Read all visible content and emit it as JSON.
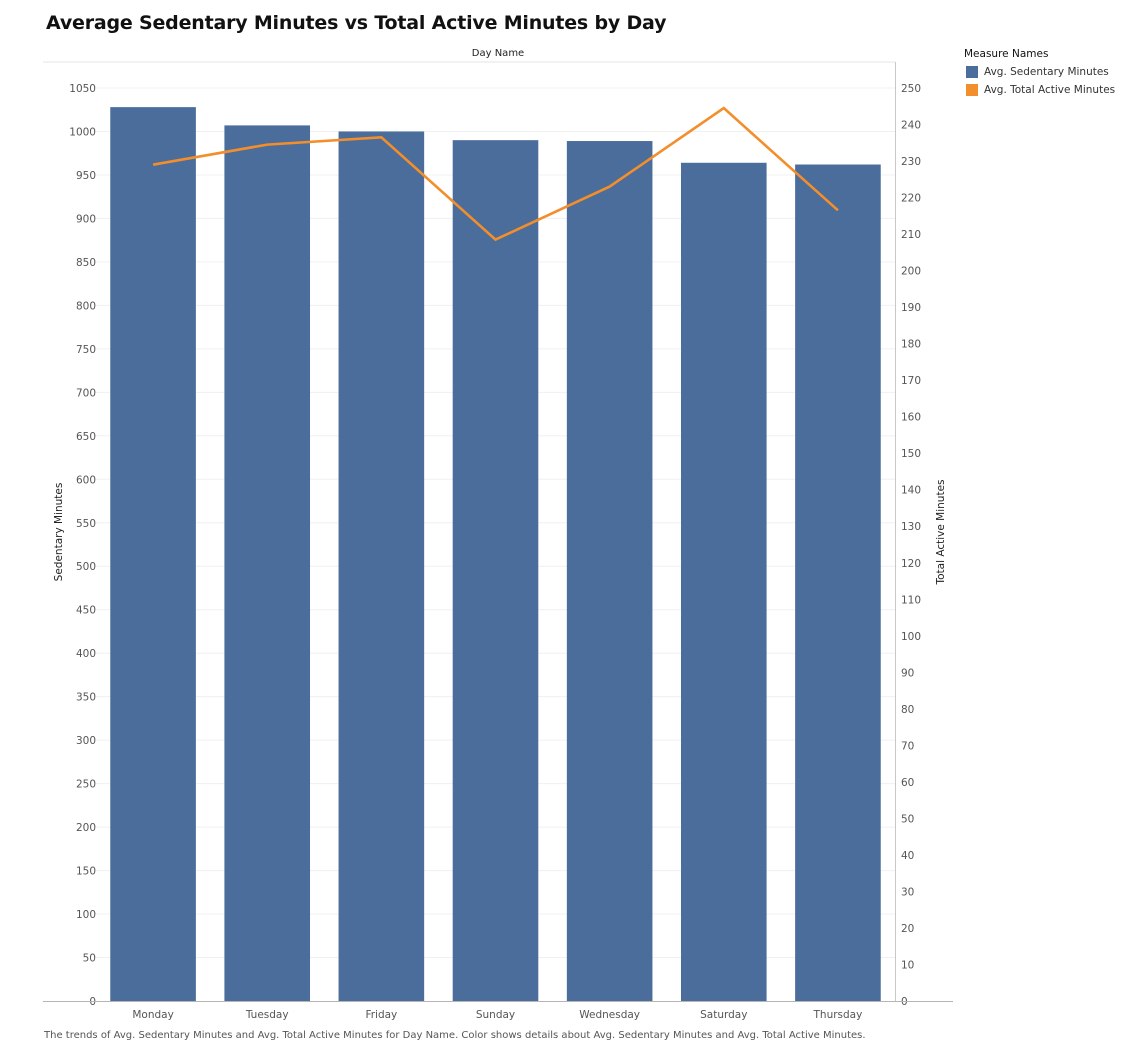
{
  "header": {
    "title": "Average Sedentary Minutes vs Total Active Minutes by Day",
    "column_header": "Day Name"
  },
  "legend": {
    "title": "Measure Names",
    "items": [
      {
        "label": "Avg. Sedentary Minutes",
        "color": "#4a6d9b"
      },
      {
        "label": "Avg. Total Active Minutes",
        "color": "#f28e2b"
      }
    ]
  },
  "caption": "The trends of Avg. Sedentary Minutes and Avg. Total Active Minutes for Day Name.  Color shows details about Avg. Sedentary Minutes and Avg. Total Active Minutes.",
  "chart_data": {
    "type": "bar",
    "title": "Average Sedentary Minutes vs Total Active Minutes by Day",
    "xlabel": "Day Name",
    "categories": [
      "Monday",
      "Tuesday",
      "Friday",
      "Sunday",
      "Wednesday",
      "Saturday",
      "Thursday"
    ],
    "series": [
      {
        "name": "Avg. Sedentary Minutes",
        "type": "bar",
        "axis": "left",
        "color": "#4a6d9b",
        "values": [
          1028,
          1007,
          1000,
          990,
          989,
          964,
          962
        ]
      },
      {
        "name": "Avg. Total Active Minutes",
        "type": "line",
        "axis": "right",
        "color": "#f28e2b",
        "values": [
          229,
          234.5,
          236.5,
          208.5,
          223,
          244.5,
          216.5
        ]
      }
    ],
    "y_left": {
      "label": "Sedentary Minutes",
      "ylim": [
        0,
        1050
      ],
      "ticks": [
        0,
        50,
        100,
        150,
        200,
        250,
        300,
        350,
        400,
        450,
        500,
        550,
        600,
        650,
        700,
        750,
        800,
        850,
        900,
        950,
        1000,
        1050
      ]
    },
    "y_right": {
      "label": "Total Active Minutes",
      "ylim": [
        0,
        250
      ],
      "ticks": [
        0,
        10,
        20,
        30,
        40,
        50,
        60,
        70,
        80,
        90,
        100,
        110,
        120,
        130,
        140,
        150,
        160,
        170,
        180,
        190,
        200,
        210,
        220,
        230,
        240,
        250
      ]
    },
    "grid": true,
    "legend_position": "top-right"
  }
}
